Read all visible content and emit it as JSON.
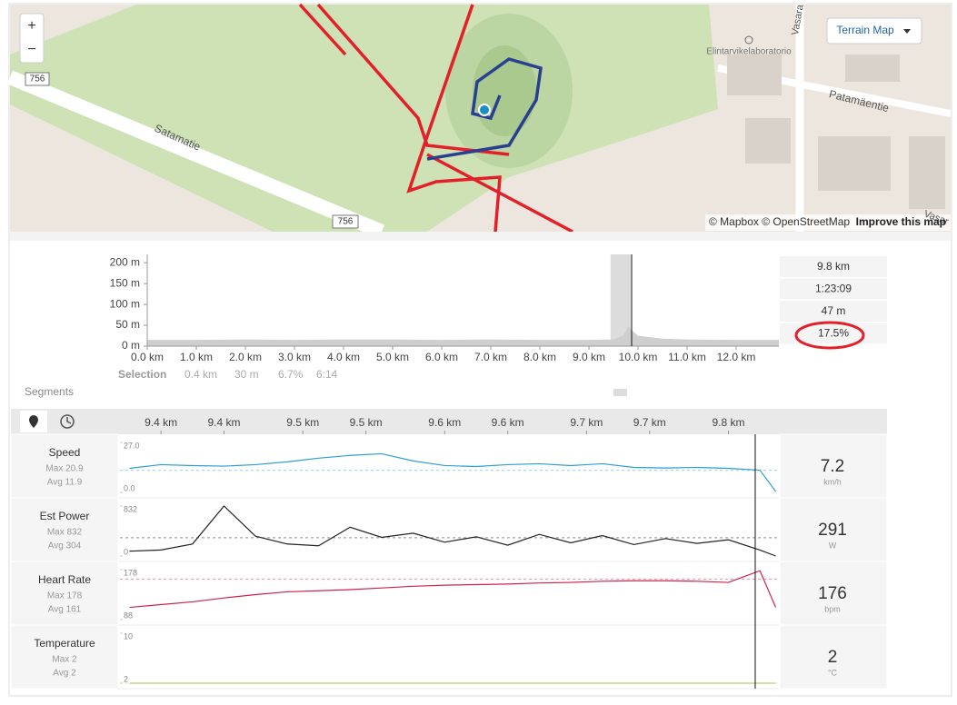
{
  "map": {
    "zoom_in": "+",
    "zoom_out": "−",
    "layer_button": "Terrain Map",
    "road_number_left": "756",
    "road_number_bottom": "756",
    "road_satamatie": "Satamatie",
    "road_patamaentie": "Patamäentie",
    "road_vasara_top": "Vasara",
    "road_vasara_bottom": "Vasar",
    "poi": "Elintarvikelaboratorio",
    "attribution": "© Mapbox © OpenStreetMap",
    "improve": "Improve this map"
  },
  "elevation": {
    "x": [
      0,
      1,
      2,
      3,
      4,
      5,
      6,
      7,
      8,
      9,
      9.5,
      9.7,
      9.8,
      9.9,
      10,
      10.5,
      11,
      12,
      12.87
    ],
    "values": [
      15,
      15,
      16,
      15,
      16,
      16,
      15,
      16,
      15,
      15,
      16,
      25,
      47,
      35,
      25,
      18,
      16,
      15,
      15
    ],
    "xlim": [
      0,
      12.87
    ],
    "ylim": [
      0,
      220
    ],
    "xticks": [
      {
        "value": 0,
        "label": "0.0 km"
      },
      {
        "value": 1,
        "label": "1.0 km"
      },
      {
        "value": 2,
        "label": "2.0 km"
      },
      {
        "value": 3,
        "label": "3.0 km"
      },
      {
        "value": 4,
        "label": "4.0 km"
      },
      {
        "value": 5,
        "label": "5.0 km"
      },
      {
        "value": 6,
        "label": "6.0 km"
      },
      {
        "value": 7,
        "label": "7.0 km"
      },
      {
        "value": 8,
        "label": "8.0 km"
      },
      {
        "value": 9,
        "label": "9.0 km"
      },
      {
        "value": 10,
        "label": "10.0 km"
      },
      {
        "value": 11,
        "label": "11.0 km"
      },
      {
        "value": 12,
        "label": "12.0 km"
      }
    ],
    "yticks": [
      {
        "value": 0,
        "label": "0 m"
      },
      {
        "value": 50,
        "label": "50 m"
      },
      {
        "value": 100,
        "label": "100 m"
      },
      {
        "value": 150,
        "label": "150 m"
      },
      {
        "value": 200,
        "label": "200 m"
      }
    ],
    "selection_range": [
      9.44,
      9.85
    ],
    "cursor": 9.87,
    "selection_label": "Selection",
    "selection": [
      "0.4 km",
      "30 m",
      "6.7%",
      "6:14"
    ]
  },
  "stats": [
    "9.8 km",
    "1:23:09",
    "47 m",
    "17.5%"
  ],
  "segments_label": "Segments",
  "streams": {
    "x": [
      9.38,
      9.4,
      9.42,
      9.44,
      9.46,
      9.48,
      9.5,
      9.52,
      9.54,
      9.56,
      9.58,
      9.6,
      9.62,
      9.64,
      9.66,
      9.68,
      9.7,
      9.72,
      9.74,
      9.76,
      9.78,
      9.79
    ],
    "xlim": [
      9.374,
      9.792
    ],
    "cursor": 9.777,
    "xticks": [
      {
        "value": 9.4,
        "label": "9.4 km"
      },
      {
        "value": 9.44,
        "label": "9.4 km"
      },
      {
        "value": 9.49,
        "label": "9.5 km"
      },
      {
        "value": 9.53,
        "label": "9.5 km"
      },
      {
        "value": 9.58,
        "label": "9.6 km"
      },
      {
        "value": 9.62,
        "label": "9.6 km"
      },
      {
        "value": 9.67,
        "label": "9.7 km"
      },
      {
        "value": 9.71,
        "label": "9.7 km"
      },
      {
        "value": 9.76,
        "label": "9.8 km"
      }
    ],
    "rows": [
      {
        "name": "Speed",
        "max_label": "Max 20.9",
        "avg_label": "Avg 11.9",
        "avg": 11.9,
        "color": "#2a9fd0",
        "ylim": [
          0,
          27
        ],
        "yticks": [
          {
            "value": 27,
            "label": "27.0"
          },
          {
            "value": 0,
            "label": "0.0"
          }
        ],
        "values": [
          13,
          15,
          14.5,
          14.2,
          15,
          16.5,
          18.5,
          20,
          20.9,
          17,
          14.5,
          14,
          15,
          15.5,
          14.5,
          15.5,
          13.5,
          13.2,
          13.5,
          13,
          12,
          0.5
        ],
        "current": 7.2,
        "unit": "km/h"
      },
      {
        "name": "Est Power",
        "max_label": "Max 832",
        "avg_label": "Avg 304",
        "avg": 304,
        "color": "#222222",
        "ylim": [
          0,
          832
        ],
        "yticks": [
          832,
          0
        ],
        "values": [
          80,
          100,
          200,
          832,
          330,
          200,
          170,
          480,
          310,
          380,
          230,
          320,
          180,
          360,
          220,
          340,
          190,
          290,
          210,
          270,
          100,
          0
        ],
        "current": 291,
        "unit": "W"
      },
      {
        "name": "Heart Rate",
        "max_label": "Max 178",
        "avg_label": "Avg 161",
        "avg": 161,
        "color": "#d0224a",
        "ylim": [
          88,
          178
        ],
        "yticks": [
          178,
          88
        ],
        "values": [
          110,
          115,
          120,
          127,
          133,
          138,
          140,
          142,
          145,
          148,
          150,
          151,
          152,
          154,
          155,
          157,
          158,
          158,
          157,
          155,
          176,
          110
        ],
        "current": 176,
        "unit": "bpm"
      },
      {
        "name": "Temperature",
        "max_label": "Max 2",
        "avg_label": "Avg 2",
        "avg": 2,
        "color": "#b9cf6a",
        "ylim": [
          2,
          10
        ],
        "yticks": [
          10,
          2
        ],
        "values": [
          2,
          2,
          2,
          2,
          2,
          2,
          2,
          2,
          2,
          2,
          2,
          2,
          2,
          2,
          2,
          2,
          2,
          2,
          2,
          2,
          2,
          2
        ],
        "current": 2,
        "unit": "°C"
      }
    ]
  }
}
